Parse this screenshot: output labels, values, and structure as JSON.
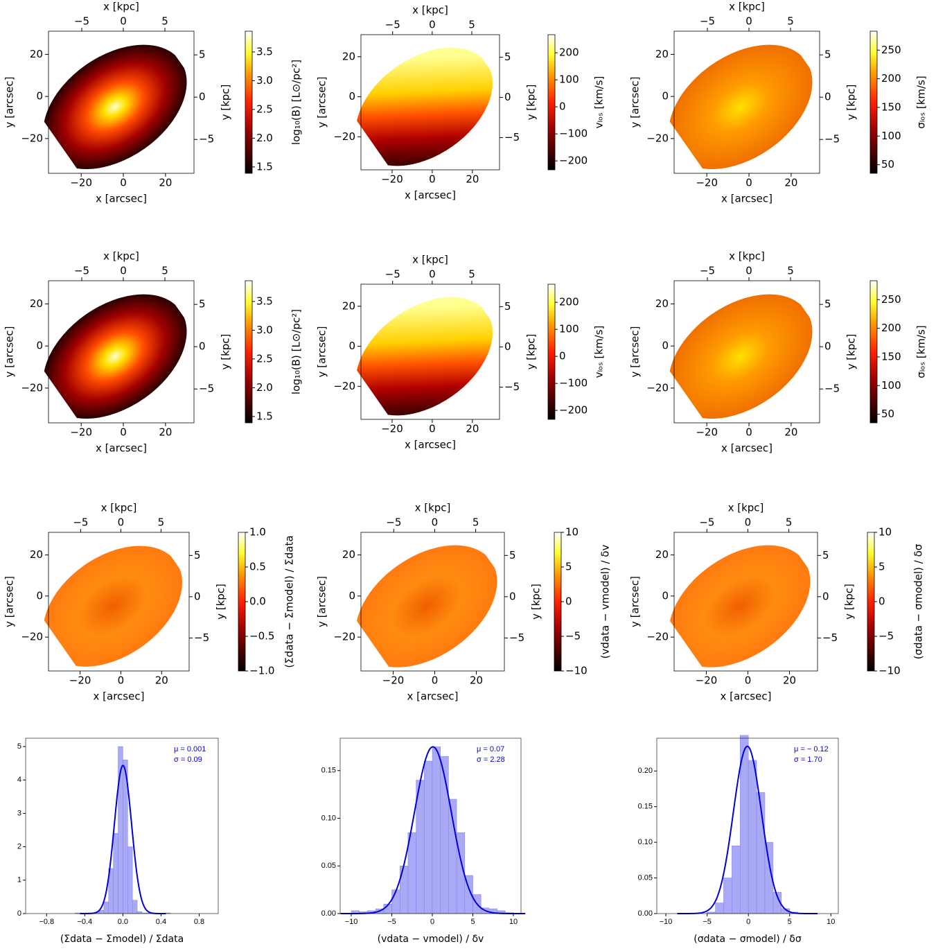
{
  "chart_data": [
    {
      "type": "map",
      "xlabel": "x [arcsec]",
      "ylabel": "y [arcsec]",
      "x2label": "x [kpc]",
      "y2label": "y [kpc]",
      "xlim": [
        -35.5,
        33.5
      ],
      "ylim": [
        -36.5,
        31
      ],
      "xticks": [
        {
          "value": -20,
          "label": "−20"
        },
        0,
        20
      ],
      "yticks": [
        {
          "value": -20,
          "label": "−20"
        },
        0,
        20
      ],
      "x2lim": [
        -9,
        8.5
      ],
      "x2ticks": [
        {
          "value": -5,
          "label": "−5"
        },
        0,
        5
      ],
      "y2lim": [
        -9,
        7.8
      ],
      "y2ticks": [
        {
          "value": -5,
          "label": "−5"
        },
        0,
        5
      ],
      "colorbar": {
        "label": "log₁₀(B) [L⊙/pc²]",
        "colormap": "afmhot",
        "lim": [
          1.39,
          3.86
        ],
        "ticks": [
          1.5,
          {
            "value": 2,
            "label": "2.0"
          },
          2.5,
          {
            "value": 3,
            "label": "3.0"
          },
          3.5
        ]
      }
    },
    {
      "type": "map",
      "xlabel": "x [arcsec]",
      "ylabel": "y [arcsec]",
      "x2label": "x [kpc]",
      "y2label": "y [kpc]",
      "xlim": [
        -35.5,
        33.5
      ],
      "ylim": [
        -36.5,
        31
      ],
      "xticks": [
        {
          "value": -20,
          "label": "−20"
        },
        0,
        20
      ],
      "yticks": [
        {
          "value": -20,
          "label": "−20"
        },
        0,
        20
      ],
      "x2lim": [
        -9,
        8.5
      ],
      "x2ticks": [
        {
          "value": -5,
          "label": "−5"
        },
        0,
        5
      ],
      "y2lim": [
        -9,
        7.8
      ],
      "y2ticks": [
        {
          "value": -5,
          "label": "−5"
        },
        0,
        5
      ],
      "colorbar": {
        "label": "vₗₒₛ [km/s]",
        "colormap": "afmhot",
        "lim": [
          -233,
          267
        ],
        "ticks": [
          {
            "value": -200,
            "label": "−200"
          },
          {
            "value": -100,
            "label": "−100"
          },
          0,
          100,
          200
        ]
      }
    },
    {
      "type": "map",
      "xlabel": "x [arcsec]",
      "ylabel": "y [arcsec]",
      "x2label": "x [kpc]",
      "y2label": "y [kpc]",
      "xlim": [
        -35.5,
        33.5
      ],
      "ylim": [
        -36.5,
        31
      ],
      "xticks": [
        {
          "value": -20,
          "label": "−20"
        },
        0,
        20
      ],
      "yticks": [
        {
          "value": -20,
          "label": "−20"
        },
        0,
        20
      ],
      "x2lim": [
        -9,
        8.5
      ],
      "x2ticks": [
        {
          "value": -5,
          "label": "−5"
        },
        0,
        5
      ],
      "y2lim": [
        -9,
        7.8
      ],
      "y2ticks": [
        {
          "value": -5,
          "label": "−5"
        },
        0,
        5
      ],
      "colorbar": {
        "label": "σₗₒₛ [km/s]",
        "colormap": "afmhot",
        "lim": [
          35,
          283
        ],
        "ticks": [
          50,
          100,
          150,
          200,
          250
        ]
      }
    },
    {
      "type": "map",
      "xlabel": "x [arcsec]",
      "ylabel": "y [arcsec]",
      "x2label": "x [kpc]",
      "y2label": "y [kpc]",
      "xlim": [
        -35.5,
        33.5
      ],
      "ylim": [
        -36.5,
        31
      ],
      "xticks": [
        {
          "value": -20,
          "label": "−20"
        },
        0,
        20
      ],
      "yticks": [
        {
          "value": -20,
          "label": "−20"
        },
        0,
        20
      ],
      "x2lim": [
        -9,
        8.5
      ],
      "x2ticks": [
        {
          "value": -5,
          "label": "−5"
        },
        0,
        5
      ],
      "y2lim": [
        -9,
        7.8
      ],
      "y2ticks": [
        {
          "value": -5,
          "label": "−5"
        },
        0,
        5
      ],
      "colorbar": {
        "label": "log₁₀(B) [L⊙/pc²]",
        "colormap": "afmhot",
        "lim": [
          1.39,
          3.86
        ],
        "ticks": [
          1.5,
          {
            "value": 2,
            "label": "2.0"
          },
          2.5,
          {
            "value": 3,
            "label": "3.0"
          },
          3.5
        ]
      }
    },
    {
      "type": "map",
      "xlabel": "x [arcsec]",
      "ylabel": "y [arcsec]",
      "x2label": "x [kpc]",
      "y2label": "y [kpc]",
      "xlim": [
        -35.5,
        33.5
      ],
      "ylim": [
        -36.5,
        31
      ],
      "xticks": [
        {
          "value": -20,
          "label": "−20"
        },
        0,
        20
      ],
      "yticks": [
        {
          "value": -20,
          "label": "−20"
        },
        0,
        20
      ],
      "x2lim": [
        -9,
        8.5
      ],
      "x2ticks": [
        {
          "value": -5,
          "label": "−5"
        },
        0,
        5
      ],
      "y2lim": [
        -9,
        7.8
      ],
      "y2ticks": [
        {
          "value": -5,
          "label": "−5"
        },
        0,
        5
      ],
      "colorbar": {
        "label": "vₗₒₛ [km/s]",
        "colormap": "afmhot",
        "lim": [
          -233,
          267
        ],
        "ticks": [
          {
            "value": -200,
            "label": "−200"
          },
          {
            "value": -100,
            "label": "−100"
          },
          0,
          100,
          200
        ]
      }
    },
    {
      "type": "map",
      "xlabel": "x [arcsec]",
      "ylabel": "y [arcsec]",
      "x2label": "x [kpc]",
      "y2label": "y [kpc]",
      "xlim": [
        -35.5,
        33.5
      ],
      "ylim": [
        -36.5,
        31
      ],
      "xticks": [
        {
          "value": -20,
          "label": "−20"
        },
        0,
        20
      ],
      "yticks": [
        {
          "value": -20,
          "label": "−20"
        },
        0,
        20
      ],
      "x2lim": [
        -9,
        8.5
      ],
      "x2ticks": [
        {
          "value": -5,
          "label": "−5"
        },
        0,
        5
      ],
      "y2lim": [
        -9,
        7.8
      ],
      "y2ticks": [
        {
          "value": -5,
          "label": "−5"
        },
        0,
        5
      ],
      "colorbar": {
        "label": "σₗₒₛ [km/s]",
        "colormap": "afmhot",
        "lim": [
          35,
          283
        ],
        "ticks": [
          50,
          100,
          150,
          200,
          250
        ]
      }
    },
    {
      "type": "map",
      "xlabel": "x [arcsec]",
      "ylabel": "y [arcsec]",
      "x2label": "x [kpc]",
      "y2label": "y [kpc]",
      "xlim": [
        -35.5,
        33.5
      ],
      "ylim": [
        -36.5,
        31
      ],
      "xticks": [
        {
          "value": -20,
          "label": "−20"
        },
        0,
        20
      ],
      "yticks": [
        {
          "value": -20,
          "label": "−20"
        },
        0,
        20
      ],
      "x2lim": [
        -9,
        8.5
      ],
      "x2ticks": [
        {
          "value": -5,
          "label": "−5"
        },
        0,
        5
      ],
      "y2lim": [
        -9,
        7.8
      ],
      "y2ticks": [
        {
          "value": -5,
          "label": "−5"
        },
        0,
        5
      ],
      "colorbar": {
        "label": "(Σdata − Σmodel) / Σdata",
        "colormap": "afmhot",
        "lim": [
          -1,
          1
        ],
        "ticks": [
          {
            "value": -1,
            "label": "−1.0"
          },
          {
            "value": -0.5,
            "label": "−0.5"
          },
          {
            "value": 0,
            "label": "0.0"
          },
          0.5,
          {
            "value": 1,
            "label": "1.0"
          }
        ]
      }
    },
    {
      "type": "map",
      "xlabel": "x [arcsec]",
      "ylabel": "y [arcsec]",
      "x2label": "x [kpc]",
      "y2label": "y [kpc]",
      "xlim": [
        -35.5,
        33.5
      ],
      "ylim": [
        -36.5,
        31
      ],
      "xticks": [
        {
          "value": -20,
          "label": "−20"
        },
        0,
        20
      ],
      "yticks": [
        {
          "value": -20,
          "label": "−20"
        },
        0,
        20
      ],
      "x2lim": [
        -9,
        8.5
      ],
      "x2ticks": [
        {
          "value": -5,
          "label": "−5"
        },
        0,
        5
      ],
      "y2lim": [
        -9,
        7.8
      ],
      "y2ticks": [
        {
          "value": -5,
          "label": "−5"
        },
        0,
        5
      ],
      "colorbar": {
        "label": "(vdata − vmodel) / δv",
        "colormap": "afmhot",
        "lim": [
          -10,
          10
        ],
        "ticks": [
          {
            "value": -10,
            "label": "−10"
          },
          {
            "value": -5,
            "label": "−5"
          },
          0,
          5,
          10
        ]
      }
    },
    {
      "type": "map",
      "xlabel": "x [arcsec]",
      "ylabel": "y [arcsec]",
      "x2label": "x [kpc]",
      "y2label": "y [kpc]",
      "xlim": [
        -35.5,
        33.5
      ],
      "ylim": [
        -36.5,
        31
      ],
      "xticks": [
        {
          "value": -20,
          "label": "−20"
        },
        0,
        20
      ],
      "yticks": [
        {
          "value": -20,
          "label": "−20"
        },
        0,
        20
      ],
      "x2lim": [
        -9,
        8.5
      ],
      "x2ticks": [
        {
          "value": -5,
          "label": "−5"
        },
        0,
        5
      ],
      "y2lim": [
        -9,
        7.8
      ],
      "y2ticks": [
        {
          "value": -5,
          "label": "−5"
        },
        0,
        5
      ],
      "colorbar": {
        "label": "(σdata − σmodel) / δσ",
        "colormap": "afmhot",
        "lim": [
          -10,
          10
        ],
        "ticks": [
          {
            "value": -10,
            "label": "−10"
          },
          {
            "value": -5,
            "label": "−5"
          },
          0,
          5,
          10
        ]
      }
    },
    {
      "type": "histogram",
      "xlabel": "(Σdata − Σmodel) / Σdata",
      "color": "#a9a9f6",
      "fit_color": "#0000dd",
      "bins": [
        -0.5,
        -0.45,
        -0.4,
        -0.35,
        -0.3,
        -0.25,
        -0.2,
        -0.15,
        -0.1,
        -0.05,
        0,
        0.05,
        0.1,
        0.15,
        0.2,
        0.25,
        0.3,
        0.35,
        0.4,
        0.45,
        0.5
      ],
      "values": [
        0.02,
        0.02,
        0.02,
        0.02,
        0.04,
        0.1,
        0.35,
        1.35,
        2.4,
        5.0,
        4.6,
        2.0,
        0.4,
        0.06,
        0.02,
        0.02,
        0,
        0,
        0,
        0.02
      ],
      "fit": {
        "mu": {
          "value": 0.001,
          "label": "μ = 0.001"
        },
        "sigma": {
          "value": 0.09,
          "label": "σ = 0.09"
        }
      },
      "xlim": [
        -1.02,
        1.0
      ],
      "ylim": [
        0,
        5.25
      ],
      "xticks": [
        {
          "value": -0.8,
          "label": "−0.8"
        },
        {
          "value": -0.4,
          "label": "−0.4"
        },
        {
          "value": 0,
          "label": "0.0"
        },
        0.4,
        0.8
      ],
      "yticks": [
        0,
        1,
        2,
        3,
        4,
        5
      ]
    },
    {
      "type": "histogram",
      "xlabel": "(vdata − vmodel) / δv",
      "color": "#a9a9f6",
      "fit_color": "#0000dd",
      "bins": [
        -10,
        -9,
        -8,
        -7,
        -6,
        -5,
        -4,
        -3,
        -2,
        -1,
        0,
        1,
        2,
        3,
        4,
        5,
        6,
        7,
        8,
        9,
        10
      ],
      "values": [
        0.003,
        0.002,
        0.003,
        0.005,
        0.01,
        0.025,
        0.05,
        0.085,
        0.14,
        0.16,
        0.175,
        0.165,
        0.12,
        0.085,
        0.04,
        0.02,
        0.006,
        0.005,
        0.003,
        0.001
      ],
      "fit": {
        "mu": {
          "value": 0.07,
          "label": "μ = 0.07"
        },
        "sigma": {
          "value": 2.28,
          "label": "σ = 2.28"
        }
      },
      "xlim": [
        -11.37,
        10.94
      ],
      "ylim": [
        0,
        0.184
      ],
      "xticks": [
        {
          "value": -10,
          "label": "−10"
        },
        {
          "value": -5,
          "label": "−5"
        },
        0,
        5,
        10
      ],
      "yticks": [
        {
          "value": 0,
          "label": "0.00"
        },
        0.05,
        {
          "value": 0.1,
          "label": "0.10"
        },
        0.15
      ]
    },
    {
      "type": "histogram",
      "xlabel": "(σdata − σmodel) / δσ",
      "color": "#a9a9f6",
      "fit_color": "#0000dd",
      "bins": [
        -10,
        -9,
        -8,
        -7,
        -6,
        -5,
        -4,
        -3,
        -2,
        -1,
        0,
        1,
        2,
        3,
        4,
        5,
        6,
        7,
        8,
        9,
        10
      ],
      "values": [
        0,
        0,
        0,
        0,
        0,
        0.002,
        0.015,
        0.05,
        0.095,
        0.25,
        0.215,
        0.17,
        0.1,
        0.03,
        0.007,
        0.002,
        0,
        0,
        0,
        0
      ],
      "fit": {
        "mu": {
          "value": -0.12,
          "label": "μ = − 0.12"
        },
        "sigma": {
          "value": 1.7,
          "label": "σ = 1.70"
        }
      },
      "xlim": [
        -11.1,
        10.9
      ],
      "ylim": [
        0,
        0.246
      ],
      "xticks": [
        {
          "value": -10,
          "label": "−10"
        },
        {
          "value": -5,
          "label": "−5"
        },
        0,
        5,
        10
      ],
      "yticks": [
        {
          "value": 0,
          "label": "0.00"
        },
        0.05,
        {
          "value": 0.1,
          "label": "0.10"
        },
        0.15,
        {
          "value": 0.2,
          "label": "0.20"
        }
      ]
    }
  ]
}
